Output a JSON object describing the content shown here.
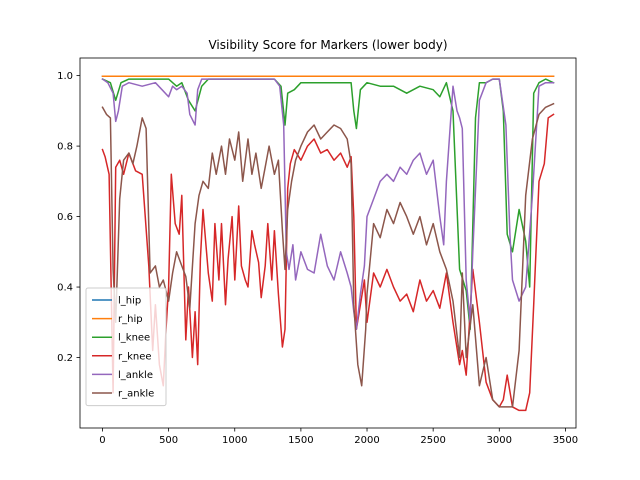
{
  "chart_data": {
    "type": "line",
    "title": "Visibility Score for Markers (lower body)",
    "xlabel": "",
    "ylabel": "",
    "xlim": [
      -170,
      3580
    ],
    "ylim": [
      0.0,
      1.05
    ],
    "xticks": [
      0,
      500,
      1000,
      1500,
      2000,
      2500,
      3000,
      3500
    ],
    "xtick_labels": [
      "0",
      "500",
      "1000",
      "1500",
      "2000",
      "2500",
      "3000",
      "3500"
    ],
    "yticks": [
      0.2,
      0.4,
      0.6,
      0.8,
      1.0
    ],
    "ytick_labels": [
      "0.2",
      "0.4",
      "0.6",
      "0.8",
      "1.0"
    ],
    "grid": false,
    "legend_position": "lower-left",
    "series": [
      {
        "name": "l_hip",
        "color": "#1f77b4",
        "x": [
          0,
          2700,
          2710,
          3410
        ],
        "y": [
          0.998,
          0.998,
          0.998,
          0.998
        ]
      },
      {
        "name": "r_hip",
        "color": "#ff7f0e",
        "x": [
          0,
          2700,
          2720,
          3410
        ],
        "y": [
          0.998,
          0.998,
          0.998,
          0.998
        ]
      },
      {
        "name": "l_knee",
        "color": "#2ca02c",
        "x": [
          0,
          60,
          100,
          140,
          200,
          300,
          400,
          500,
          560,
          600,
          650,
          700,
          750,
          800,
          900,
          1000,
          1100,
          1200,
          1300,
          1350,
          1380,
          1400,
          1450,
          1500,
          1600,
          1700,
          1800,
          1880,
          1900,
          1920,
          1950,
          2000,
          2100,
          2200,
          2300,
          2400,
          2500,
          2550,
          2600,
          2650,
          2700,
          2750,
          2780,
          2820,
          2850,
          2900,
          2950,
          3000,
          3030,
          3060,
          3100,
          3150,
          3200,
          3230,
          3260,
          3300,
          3350,
          3410
        ],
        "y": [
          0.99,
          0.98,
          0.93,
          0.98,
          0.99,
          0.99,
          0.99,
          0.99,
          0.97,
          0.98,
          0.93,
          0.9,
          0.97,
          0.99,
          0.99,
          0.99,
          0.99,
          0.99,
          0.99,
          0.97,
          0.86,
          0.95,
          0.96,
          0.98,
          0.98,
          0.98,
          0.98,
          0.98,
          0.9,
          0.85,
          0.96,
          0.98,
          0.97,
          0.97,
          0.95,
          0.97,
          0.96,
          0.94,
          0.98,
          0.9,
          0.45,
          0.39,
          0.28,
          0.88,
          0.98,
          0.98,
          0.99,
          0.99,
          0.9,
          0.55,
          0.5,
          0.62,
          0.53,
          0.4,
          0.95,
          0.98,
          0.99,
          0.98
        ]
      },
      {
        "name": "r_knee",
        "color": "#d62728",
        "x": [
          0,
          20,
          50,
          80,
          100,
          130,
          160,
          200,
          250,
          300,
          350,
          380,
          400,
          430,
          460,
          480,
          500,
          520,
          550,
          580,
          600,
          630,
          650,
          680,
          700,
          720,
          740,
          760,
          800,
          830,
          850,
          880,
          900,
          930,
          950,
          980,
          1000,
          1030,
          1050,
          1080,
          1100,
          1130,
          1150,
          1180,
          1200,
          1230,
          1250,
          1280,
          1300,
          1330,
          1360,
          1380,
          1400,
          1420,
          1450,
          1500,
          1550,
          1600,
          1650,
          1700,
          1750,
          1800,
          1850,
          1880,
          1900,
          1920,
          1950,
          1980,
          2000,
          2050,
          2100,
          2150,
          2200,
          2250,
          2300,
          2350,
          2400,
          2450,
          2500,
          2550,
          2600,
          2650,
          2700,
          2720,
          2750,
          2800,
          2850,
          2900,
          2950,
          3000,
          3030,
          3060,
          3100,
          3150,
          3200,
          3230,
          3260,
          3300,
          3340,
          3370,
          3410
        ],
        "y": [
          0.79,
          0.77,
          0.72,
          0.1,
          0.74,
          0.76,
          0.72,
          0.78,
          0.73,
          0.72,
          0.46,
          0.22,
          0.35,
          0.18,
          0.12,
          0.28,
          0.4,
          0.72,
          0.58,
          0.55,
          0.66,
          0.25,
          0.4,
          0.2,
          0.33,
          0.18,
          0.48,
          0.62,
          0.44,
          0.36,
          0.58,
          0.42,
          0.58,
          0.35,
          0.48,
          0.6,
          0.42,
          0.63,
          0.46,
          0.42,
          0.4,
          0.56,
          0.52,
          0.47,
          0.37,
          0.46,
          0.58,
          0.42,
          0.56,
          0.38,
          0.23,
          0.28,
          0.68,
          0.75,
          0.79,
          0.76,
          0.8,
          0.82,
          0.78,
          0.79,
          0.76,
          0.78,
          0.74,
          0.77,
          0.6,
          0.28,
          0.35,
          0.42,
          0.3,
          0.44,
          0.4,
          0.45,
          0.4,
          0.36,
          0.38,
          0.33,
          0.42,
          0.36,
          0.39,
          0.34,
          0.44,
          0.3,
          0.18,
          0.22,
          0.15,
          0.45,
          0.3,
          0.13,
          0.08,
          0.06,
          0.08,
          0.15,
          0.06,
          0.05,
          0.05,
          0.1,
          0.35,
          0.7,
          0.75,
          0.88,
          0.89
        ]
      },
      {
        "name": "l_ankle",
        "color": "#9467bd",
        "x": [
          0,
          40,
          80,
          100,
          120,
          150,
          200,
          300,
          400,
          450,
          500,
          530,
          560,
          600,
          640,
          660,
          700,
          720,
          750,
          800,
          900,
          1000,
          1100,
          1200,
          1300,
          1340,
          1370,
          1390,
          1410,
          1440,
          1460,
          1500,
          1550,
          1600,
          1650,
          1700,
          1750,
          1800,
          1850,
          1880,
          1900,
          1920,
          1950,
          1980,
          2000,
          2050,
          2100,
          2150,
          2200,
          2250,
          2300,
          2350,
          2400,
          2450,
          2500,
          2550,
          2580,
          2600,
          2650,
          2680,
          2700,
          2720,
          2750,
          2780,
          2800,
          2850,
          2900,
          2950,
          3000,
          3050,
          3080,
          3100,
          3150,
          3200,
          3250,
          3300,
          3350,
          3410
        ],
        "y": [
          0.99,
          0.98,
          0.95,
          0.87,
          0.9,
          0.97,
          0.98,
          0.97,
          0.98,
          0.96,
          0.94,
          0.97,
          0.96,
          0.97,
          0.95,
          0.89,
          0.86,
          0.96,
          0.99,
          0.99,
          0.99,
          0.99,
          0.99,
          0.99,
          0.99,
          0.97,
          0.86,
          0.5,
          0.45,
          0.52,
          0.42,
          0.5,
          0.45,
          0.44,
          0.55,
          0.46,
          0.42,
          0.5,
          0.44,
          0.4,
          0.33,
          0.28,
          0.38,
          0.46,
          0.6,
          0.65,
          0.7,
          0.72,
          0.7,
          0.74,
          0.72,
          0.76,
          0.78,
          0.72,
          0.76,
          0.6,
          0.52,
          0.7,
          0.97,
          0.9,
          0.88,
          0.85,
          0.42,
          0.3,
          0.5,
          0.93,
          0.98,
          0.99,
          0.99,
          0.86,
          0.55,
          0.42,
          0.36,
          0.4,
          0.66,
          0.97,
          0.98,
          0.98
        ]
      },
      {
        "name": "r_ankle",
        "color": "#8c564b",
        "x": [
          0,
          30,
          60,
          80,
          100,
          130,
          160,
          200,
          230,
          260,
          300,
          330,
          360,
          400,
          430,
          460,
          500,
          530,
          560,
          600,
          630,
          660,
          700,
          730,
          760,
          800,
          830,
          860,
          900,
          930,
          960,
          1000,
          1030,
          1060,
          1100,
          1130,
          1160,
          1200,
          1230,
          1260,
          1300,
          1330,
          1360,
          1380,
          1400,
          1430,
          1460,
          1500,
          1550,
          1600,
          1650,
          1700,
          1750,
          1800,
          1850,
          1880,
          1900,
          1930,
          1960,
          1990,
          2000,
          2050,
          2100,
          2150,
          2200,
          2250,
          2300,
          2350,
          2400,
          2450,
          2500,
          2550,
          2600,
          2650,
          2700,
          2720,
          2750,
          2800,
          2850,
          2900,
          2950,
          3000,
          3050,
          3100,
          3150,
          3200,
          3250,
          3300,
          3350,
          3410
        ],
        "y": [
          0.91,
          0.89,
          0.88,
          0.45,
          0.3,
          0.65,
          0.76,
          0.78,
          0.75,
          0.8,
          0.88,
          0.85,
          0.44,
          0.46,
          0.4,
          0.42,
          0.36,
          0.44,
          0.5,
          0.46,
          0.43,
          0.34,
          0.58,
          0.66,
          0.7,
          0.68,
          0.78,
          0.72,
          0.8,
          0.72,
          0.82,
          0.76,
          0.84,
          0.7,
          0.82,
          0.72,
          0.78,
          0.68,
          0.74,
          0.8,
          0.72,
          0.76,
          0.56,
          0.45,
          0.62,
          0.7,
          0.76,
          0.8,
          0.84,
          0.86,
          0.82,
          0.84,
          0.86,
          0.85,
          0.82,
          0.75,
          0.35,
          0.18,
          0.12,
          0.28,
          0.38,
          0.58,
          0.54,
          0.62,
          0.58,
          0.64,
          0.6,
          0.55,
          0.6,
          0.52,
          0.58,
          0.5,
          0.45,
          0.36,
          0.2,
          0.44,
          0.2,
          0.35,
          0.12,
          0.2,
          0.08,
          0.06,
          0.06,
          0.06,
          0.22,
          0.66,
          0.82,
          0.89,
          0.91,
          0.92
        ]
      }
    ]
  }
}
